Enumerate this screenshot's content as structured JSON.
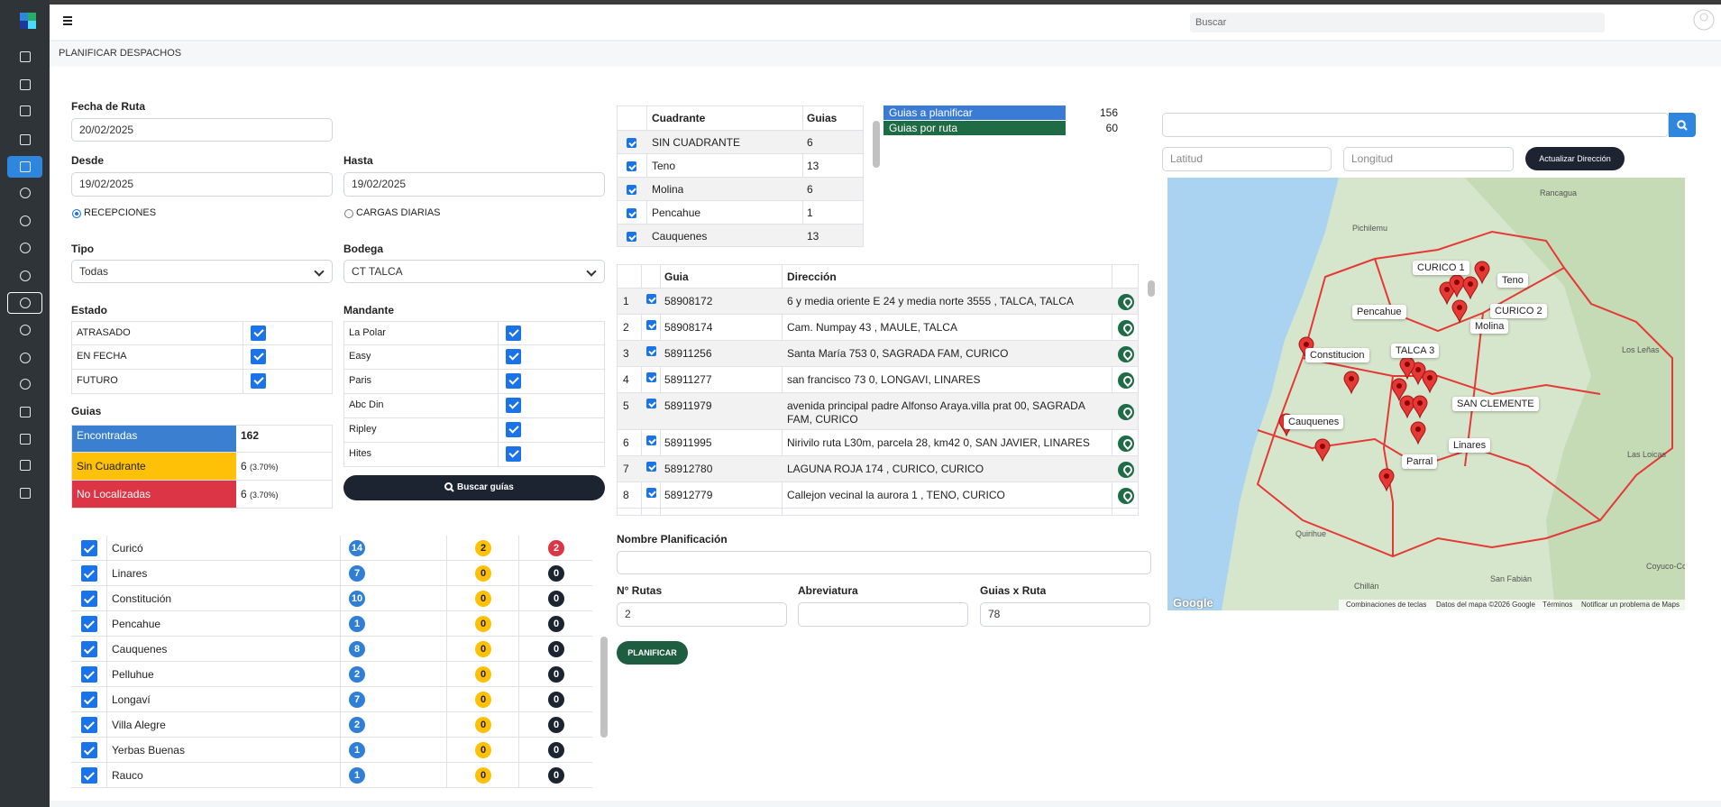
{
  "header": {
    "search_placeholder": "Buscar",
    "page_title": "PLANIFICAR DESPACHOS"
  },
  "form": {
    "fecha_ruta": {
      "label": "Fecha de Ruta",
      "value": "20/02/2025"
    },
    "desde": {
      "label": "Desde",
      "value": "19/02/2025"
    },
    "hasta": {
      "label": "Hasta",
      "value": "19/02/2025"
    },
    "radio_options": [
      {
        "label": "RECEPCIONES",
        "checked": true
      },
      {
        "label": "CARGAS DIARIAS",
        "checked": false
      }
    ],
    "tipo": {
      "label": "Tipo",
      "value": "Todas"
    },
    "bodega": {
      "label": "Bodega",
      "value": "CT TALCA"
    },
    "estado": {
      "label": "Estado",
      "rows": [
        "ATRASADO",
        "EN FECHA",
        "FUTURO"
      ]
    },
    "mandante": {
      "label": "Mandante",
      "rows": [
        "La Polar",
        "Easy",
        "Paris",
        "Abc Din",
        "Ripley",
        "Hites"
      ]
    },
    "guias": {
      "label": "Guias",
      "rows": [
        {
          "label": "Encontradas",
          "value": 162,
          "color": "#3b7fd0"
        },
        {
          "label": "Sin Cuadrante",
          "value": 6,
          "percent": "(3.70%)",
          "color": "#ffc107"
        },
        {
          "label": "No Localizadas",
          "value": 6,
          "percent": "(3.70%)",
          "color": "#dc3545"
        }
      ]
    },
    "search_button": "Buscar guías"
  },
  "region_list": {
    "rows": [
      {
        "name": "Curicó",
        "counts": [
          14,
          2,
          2
        ]
      },
      {
        "name": "Linares",
        "counts": [
          7,
          0,
          0
        ]
      },
      {
        "name": "Constitución",
        "counts": [
          10,
          0,
          0
        ]
      },
      {
        "name": "Pencahue",
        "counts": [
          1,
          0,
          0
        ]
      },
      {
        "name": "Cauquenes",
        "counts": [
          8,
          0,
          0
        ]
      },
      {
        "name": "Pelluhue",
        "counts": [
          2,
          0,
          0
        ]
      },
      {
        "name": "Longaví",
        "counts": [
          7,
          0,
          0
        ]
      },
      {
        "name": "Villa Alegre",
        "counts": [
          2,
          0,
          0
        ]
      },
      {
        "name": "Yerbas Buenas",
        "counts": [
          1,
          0,
          0
        ]
      },
      {
        "name": "Rauco",
        "counts": [
          1,
          0,
          0
        ]
      }
    ]
  },
  "quadrants": {
    "headers": [
      "Cuadrante",
      "Guias"
    ],
    "rows": [
      [
        "SIN CUADRANTE",
        6
      ],
      [
        "Teno",
        13
      ],
      [
        "Molina",
        6
      ],
      [
        "Pencahue",
        1
      ],
      [
        "Cauquenes",
        13
      ]
    ]
  },
  "summary": {
    "rows": [
      {
        "label": "Guias a planificar",
        "value": 156,
        "color": "#3a7bd5"
      },
      {
        "label": "Guias por ruta",
        "value": 60,
        "color": "#1e6b46"
      }
    ]
  },
  "guides": {
    "headers": [
      "Guia",
      "Dirección"
    ],
    "rows": [
      [
        1,
        58908172,
        "6 y media oriente E 24 y media norte 3555 , TALCA, TALCA"
      ],
      [
        2,
        58908174,
        "Cam. Numpay 43 , MAULE, TALCA"
      ],
      [
        3,
        58911256,
        "Santa María 753 0, SAGRADA FAM, CURICO"
      ],
      [
        4,
        58911277,
        "san francisco 73 0, LONGAVI, LINARES"
      ],
      [
        5,
        58911979,
        "avenida principal padre Alfonso Araya.villa prat 00, SAGRADA FAM, CURICO"
      ],
      [
        6,
        58911995,
        "Nirivilo ruta L30m, parcela 28, km42 0, SAN JAVIER, LINARES"
      ],
      [
        7,
        58912780,
        "LAGUNA ROJA 174 , CURICO, CURICO"
      ],
      [
        8,
        58912779,
        "Callejon vecinal la aurora 1 , TENO, CURICO"
      ]
    ]
  },
  "planning": {
    "nombre": {
      "label": "Nombre Planificación"
    },
    "rutas": {
      "label": "N° Rutas",
      "value": 2
    },
    "abreviatura": {
      "label": "Abreviatura"
    },
    "guias_x_ruta": {
      "label": "Guias x Ruta",
      "value": 78
    },
    "button": "PLANIFICAR"
  },
  "map": {
    "latitude_placeholder": "Latitud",
    "longitude_placeholder": "Longitud",
    "update_button": "Actualizar Dirección",
    "pin_labels": [
      "CURICO 1",
      "Teno",
      "Pencahue",
      "CURICO 2",
      "Molina",
      "TALCA 3",
      "Constitucion",
      "SAN CLEMENTE",
      "Cauquenes",
      "Linares",
      "Parral"
    ],
    "place_names": [
      "Rancagua",
      "Pichilemu",
      "Los Leñas",
      "Las Loicas",
      "Quirihue",
      "Chillán",
      "San Fabián",
      "Coyuco-Cochico"
    ],
    "logo": "Google",
    "footer": [
      "Combinaciones de teclas",
      "Datos del mapa ©2026 Google",
      "Términos",
      "Notificar un problema de Maps"
    ]
  }
}
